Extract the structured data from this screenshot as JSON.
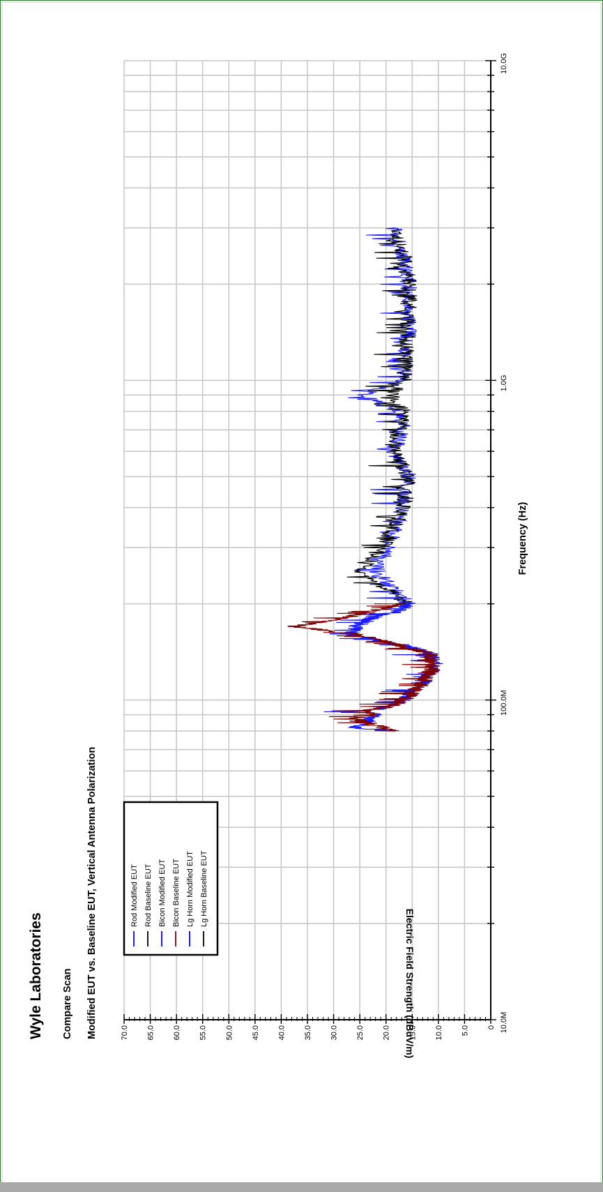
{
  "report": {
    "company": "Wyle Laboratories",
    "scan_type": "Compare Scan",
    "description": "Modified EUT vs. Baseline EUT, Vertical Antenna Polarization"
  },
  "chart_data": {
    "type": "line",
    "orientation": "rotated -90 (frequency axis vertical, amplitude horizontal)",
    "xlabel": "Frequency (Hz)",
    "ylabel": "Electric Field Strength (dBuV/m)",
    "x_scale": "log",
    "xlim": [
      10000000,
      10000000000
    ],
    "ylim": [
      0,
      70
    ],
    "x_tick_labels": [
      {
        "value": 10000000,
        "label": "10.0M"
      },
      {
        "value": 100000000,
        "label": "100.0M"
      },
      {
        "value": 1000000000,
        "label": "1.0G"
      },
      {
        "value": 10000000000,
        "label": "10.0G"
      }
    ],
    "y_ticks": [
      0,
      5,
      10,
      15,
      20,
      25,
      30,
      35,
      40,
      45,
      50,
      55,
      60,
      65,
      70
    ],
    "y_tick_labels": [
      "0",
      "5.0",
      "10.0",
      "15.0",
      "20.0",
      "25.0",
      "30.0",
      "35.0",
      "40.0",
      "45.0",
      "50.0",
      "55.0",
      "60.0",
      "65.0",
      "70.0"
    ],
    "grid": true,
    "legend_position": "lower-left",
    "series": [
      {
        "name": "Rod Modified EUT",
        "color": "#0000ff",
        "x": [],
        "y": []
      },
      {
        "name": "Rod Baseline EUT",
        "color": "#000000",
        "x": [],
        "y": []
      },
      {
        "name": "Bicon Modified EUT",
        "color": "#0000ff",
        "x": [
          80000000,
          82000000,
          85000000,
          88000000,
          90000000,
          92000000,
          95000000,
          100000000,
          110000000,
          120000000,
          130000000,
          140000000,
          150000000,
          160000000,
          170000000,
          180000000,
          190000000,
          200000000
        ],
        "y": [
          18,
          27,
          23,
          24,
          22,
          25,
          20,
          17,
          14,
          12,
          11,
          12,
          18,
          27,
          26,
          23,
          18,
          16
        ]
      },
      {
        "name": "Bicon Baseline EUT",
        "color": "#7f0000",
        "x": [
          80000000,
          82000000,
          85000000,
          88000000,
          90000000,
          92000000,
          95000000,
          100000000,
          110000000,
          120000000,
          130000000,
          140000000,
          150000000,
          160000000,
          170000000,
          180000000,
          190000000,
          200000000
        ],
        "y": [
          18,
          21,
          24,
          26,
          22,
          25,
          20,
          17,
          14,
          12,
          11,
          12,
          19,
          25,
          38,
          29,
          22,
          17
        ]
      },
      {
        "name": "Lg Horn Modified EUT",
        "color": "#0000ff",
        "x": [
          200000000,
          250000000,
          300000000,
          400000000,
          500000000,
          600000000,
          700000000,
          800000000,
          900000000,
          1000000000,
          1500000000,
          2000000000,
          2500000000,
          3000000000
        ],
        "y": [
          16,
          22,
          20,
          17,
          16,
          19,
          17,
          18,
          25,
          17,
          16,
          16,
          17,
          19
        ]
      },
      {
        "name": "Lg Horn Baseline EUT",
        "color": "#000000",
        "x": [
          200000000,
          250000000,
          300000000,
          400000000,
          500000000,
          600000000,
          700000000,
          800000000,
          900000000,
          1000000000,
          1500000000,
          2000000000,
          2500000000,
          3000000000
        ],
        "y": [
          16,
          25,
          21,
          17,
          16,
          19,
          18,
          17,
          19,
          17,
          16,
          16,
          17,
          19
        ]
      }
    ]
  },
  "colors": {
    "grid": "#c8c8c8",
    "axis": "#000000",
    "modified": "#0000ff",
    "baseline_bicon": "#7f0000",
    "baseline": "#000000"
  }
}
